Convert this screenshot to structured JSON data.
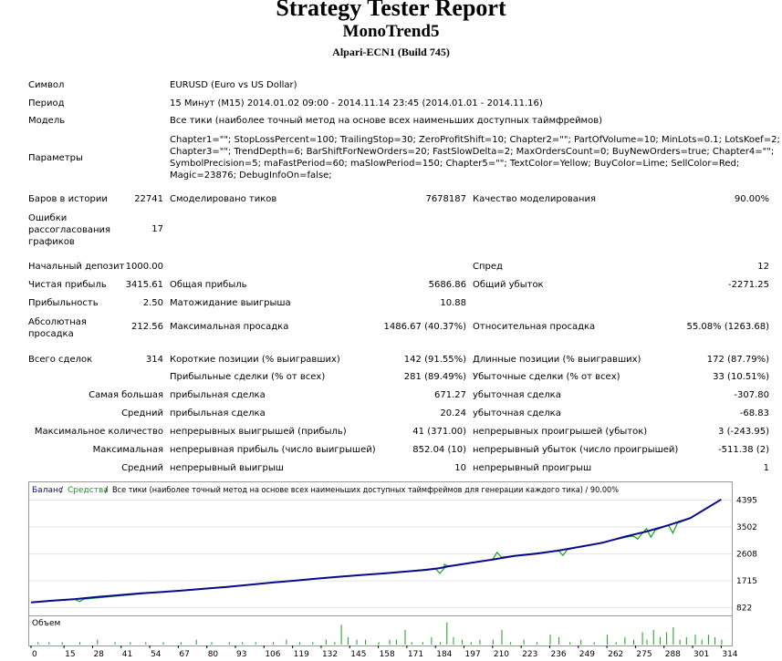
{
  "header": {
    "title": "Strategy Tester Report",
    "expert": "MonoTrend5",
    "server": "Alpari-ECN1 (Build 745)"
  },
  "info": {
    "symbol_label": "Символ",
    "symbol_value": "EURUSD (Euro vs US Dollar)",
    "period_label": "Период",
    "period_value": "15 Минут (M15) 2014.01.02 09:00 - 2014.11.14 23:45 (2014.01.01 - 2014.11.16)",
    "model_label": "Модель",
    "model_value": "Все тики (наиболее точный метод на основе всех наименьших доступных таймфреймов)",
    "params_label": "Параметры",
    "params_lines": [
      "Chapter1=\"\"; StopLossPercent=100; TrailingStop=30; ZeroProfitShift=10; Chapter2=\"\"; PartOfVolume=10; MinLots=0.1; LotsKoef=2;",
      "Chapter3=\"\"; TrendDepth=6; BarShiftForNewOrders=20; FastSlowDelta=2; MaxOrdersCount=0; BuyNewOrders=true; Chapter4=\"\";",
      "SymbolPrecision=5; maFastPeriod=60; maSlowPeriod=150; Chapter5=\"\"; TextColor=Yellow; BuyColor=Lime; SellColor=Red;",
      "Magic=23876; DebugInfoOn=false;"
    ]
  },
  "stats": {
    "bars_label": "Баров в истории",
    "bars_value": "22741",
    "ticks_label": "Смоделировано тиков",
    "ticks_value": "7678187",
    "quality_label": "Качество моделирования",
    "quality_value": "90.00%",
    "errors_label": "Ошибки рассогласования графиков",
    "errors_value": "17",
    "deposit_label": "Начальный депозит",
    "deposit_value": "1000.00",
    "spread_label": "Спред",
    "spread_value": "12",
    "net_label": "Чистая прибыль",
    "net_value": "3415.61",
    "gross_profit_label": "Общая прибыль",
    "gross_profit_value": "5686.86",
    "gross_loss_label": "Общий убыток",
    "gross_loss_value": "-2271.25",
    "pf_label": "Прибыльность",
    "pf_value": "2.50",
    "payoff_label": "Матожидание выигрыша",
    "payoff_value": "10.88",
    "abs_dd_label": "Абсолютная просадка",
    "abs_dd_value": "212.56",
    "max_dd_label": "Максимальная просадка",
    "max_dd_value": "1486.67 (40.37%)",
    "rel_dd_label": "Относительная просадка",
    "rel_dd_value": "55.08% (1263.68)",
    "total_label": "Всего сделок",
    "total_value": "314",
    "short_label": "Короткие позиции (% выигравших)",
    "short_value": "142 (91.55%)",
    "long_label": "Длинные позиции (% выигравших)",
    "long_value": "172 (87.79%)",
    "profit_trades_label": "Прибыльные сделки (% от всех)",
    "profit_trades_value": "281 (89.49%)",
    "loss_trades_label": "Убыточные сделки (% от всех)",
    "loss_trades_value": "33 (10.51%)",
    "largest_label": "Самая большая",
    "largest_profit_label": "прибыльная сделка",
    "largest_profit_value": "671.27",
    "largest_loss_label": "убыточная сделка",
    "largest_loss_value": "-307.80",
    "average_label": "Средний",
    "average_profit_label": "прибыльная сделка",
    "average_profit_value": "20.24",
    "average_loss_label": "убыточная сделка",
    "average_loss_value": "-68.83",
    "maxcount_label": "Максимальное количество",
    "cons_wins_label": "непрерывных выигрышей (прибыль)",
    "cons_wins_value": "41 (371.00)",
    "cons_losses_label": "непрерывных проигрышей (убыток)",
    "cons_losses_value": "3 (-243.95)",
    "maximal_label": "Максимальная",
    "cons_profit_label": "непрерывная прибыль (число выигрышей)",
    "cons_profit_value": "852.04 (10)",
    "cons_loss_label": "непрерывный убыток (число проигрышей)",
    "cons_loss_value": "-511.38 (2)",
    "avg2_label": "Средний",
    "avg_wins_label": "непрерывный выигрыш",
    "avg_wins_value": "10",
    "avg_losses_label": "непрерывный проигрыш",
    "avg_losses_value": "1"
  },
  "chart_data": {
    "type": "line",
    "legend": {
      "balance": "Баланс",
      "sep1": " / ",
      "equity": "Средства",
      "sep2": " / ",
      "rest": "Все тики (наиболее точный метод на основе всех наименьших доступных таймфреймов для генерации каждого тика) / 90.00%"
    },
    "volume_label": "Объем",
    "y_ticks": [
      822,
      1715,
      2608,
      3502,
      4395
    ],
    "ylim": [
      660,
      4500
    ],
    "x_ticks": [
      0,
      15,
      28,
      41,
      54,
      67,
      80,
      93,
      106,
      119,
      132,
      145,
      158,
      171,
      184,
      197,
      210,
      223,
      236,
      249,
      262,
      275,
      288,
      301,
      314
    ],
    "xlim": [
      0,
      318
    ],
    "series": [
      {
        "name": "Баланс",
        "color": "#0a0a8c",
        "points": [
          [
            0,
            1000
          ],
          [
            10,
            1060
          ],
          [
            20,
            1110
          ],
          [
            30,
            1180
          ],
          [
            40,
            1240
          ],
          [
            50,
            1300
          ],
          [
            60,
            1350
          ],
          [
            70,
            1400
          ],
          [
            80,
            1460
          ],
          [
            90,
            1520
          ],
          [
            100,
            1590
          ],
          [
            110,
            1660
          ],
          [
            120,
            1720
          ],
          [
            130,
            1790
          ],
          [
            140,
            1850
          ],
          [
            150,
            1910
          ],
          [
            160,
            1960
          ],
          [
            170,
            2020
          ],
          [
            180,
            2080
          ],
          [
            186,
            2140
          ],
          [
            190,
            2200
          ],
          [
            200,
            2310
          ],
          [
            210,
            2420
          ],
          [
            220,
            2540
          ],
          [
            230,
            2620
          ],
          [
            240,
            2720
          ],
          [
            250,
            2850
          ],
          [
            260,
            2980
          ],
          [
            270,
            3180
          ],
          [
            280,
            3350
          ],
          [
            290,
            3560
          ],
          [
            300,
            3800
          ],
          [
            314,
            4415
          ]
        ]
      },
      {
        "name": "Средства",
        "color": "#18a018",
        "points": [
          [
            0,
            1000
          ],
          [
            20,
            1100
          ],
          [
            22,
            1030
          ],
          [
            24,
            1110
          ],
          [
            60,
            1350
          ],
          [
            100,
            1590
          ],
          [
            150,
            1910
          ],
          [
            162,
            1960
          ],
          [
            184,
            2130
          ],
          [
            186,
            1960
          ],
          [
            188,
            2140
          ],
          [
            188,
            2260
          ],
          [
            190,
            2200
          ],
          [
            210,
            2420
          ],
          [
            212,
            2660
          ],
          [
            214,
            2500
          ],
          [
            240,
            2720
          ],
          [
            242,
            2560
          ],
          [
            244,
            2750
          ],
          [
            272,
            3180
          ],
          [
            274,
            3200
          ],
          [
            276,
            3100
          ],
          [
            278,
            3280
          ],
          [
            280,
            3450
          ],
          [
            282,
            3160
          ],
          [
            284,
            3400
          ],
          [
            290,
            3560
          ],
          [
            292,
            3300
          ],
          [
            294,
            3620
          ],
          [
            300,
            3800
          ],
          [
            314,
            4415
          ]
        ]
      }
    ],
    "volume": [
      [
        3,
        1
      ],
      [
        8,
        1
      ],
      [
        14,
        1
      ],
      [
        22,
        1
      ],
      [
        30,
        2
      ],
      [
        38,
        1
      ],
      [
        45,
        1
      ],
      [
        52,
        1
      ],
      [
        60,
        1
      ],
      [
        68,
        1
      ],
      [
        75,
        2
      ],
      [
        82,
        1
      ],
      [
        90,
        1
      ],
      [
        96,
        1
      ],
      [
        102,
        1
      ],
      [
        110,
        1
      ],
      [
        116,
        2
      ],
      [
        122,
        1
      ],
      [
        128,
        1
      ],
      [
        134,
        2
      ],
      [
        138,
        1
      ],
      [
        141,
        8
      ],
      [
        144,
        3
      ],
      [
        148,
        2
      ],
      [
        152,
        2
      ],
      [
        158,
        1
      ],
      [
        163,
        2
      ],
      [
        166,
        2
      ],
      [
        170,
        6
      ],
      [
        173,
        1
      ],
      [
        178,
        1
      ],
      [
        182,
        3
      ],
      [
        186,
        1
      ],
      [
        189,
        9
      ],
      [
        192,
        3
      ],
      [
        196,
        2
      ],
      [
        200,
        1
      ],
      [
        204,
        2
      ],
      [
        210,
        2
      ],
      [
        214,
        6
      ],
      [
        218,
        1
      ],
      [
        224,
        2
      ],
      [
        230,
        1
      ],
      [
        236,
        4
      ],
      [
        240,
        3
      ],
      [
        245,
        1
      ],
      [
        250,
        2
      ],
      [
        256,
        1
      ],
      [
        262,
        4
      ],
      [
        266,
        1
      ],
      [
        270,
        3
      ],
      [
        274,
        2
      ],
      [
        278,
        5
      ],
      [
        280,
        2
      ],
      [
        283,
        6
      ],
      [
        286,
        3
      ],
      [
        289,
        5
      ],
      [
        292,
        7
      ],
      [
        295,
        2
      ],
      [
        298,
        3
      ],
      [
        302,
        4
      ],
      [
        305,
        2
      ],
      [
        308,
        4
      ],
      [
        311,
        3
      ],
      [
        314,
        2
      ]
    ],
    "volume_max": 10
  }
}
